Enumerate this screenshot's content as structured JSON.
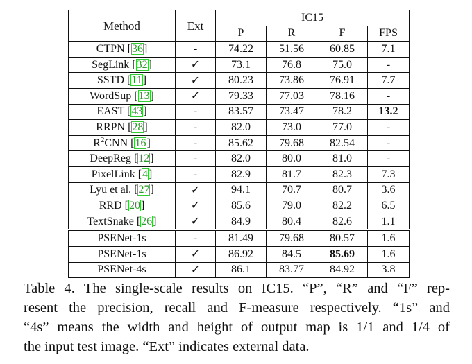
{
  "table": {
    "headers": {
      "method": "Method",
      "ext": "Ext",
      "dataset": "IC15",
      "p": "P",
      "r": "R",
      "f": "F",
      "fps": "FPS"
    },
    "rows": [
      {
        "method": "CTPN",
        "cite": "36",
        "ext": "-",
        "p": "74.22",
        "r": "51.56",
        "f": "60.85",
        "fps": "7.1"
      },
      {
        "method": "SegLink",
        "cite": "32",
        "ext": "✓",
        "p": "73.1",
        "r": "76.8",
        "f": "75.0",
        "fps": "-"
      },
      {
        "method": "SSTD",
        "cite": "11",
        "ext": "✓",
        "p": "80.23",
        "r": "73.86",
        "f": "76.91",
        "fps": "7.7"
      },
      {
        "method": "WordSup",
        "cite": "13",
        "ext": "✓",
        "p": "79.33",
        "r": "77.03",
        "f": "78.16",
        "fps": "-"
      },
      {
        "method": "EAST",
        "cite": "43",
        "ext": "-",
        "p": "83.57",
        "r": "73.47",
        "f": "78.2",
        "fps": "13.2",
        "fps_bold": true
      },
      {
        "method": "RRPN",
        "cite": "28",
        "ext": "-",
        "p": "82.0",
        "r": "73.0",
        "f": "77.0",
        "fps": "-"
      },
      {
        "method": "R",
        "method_sup": "2",
        "method_rest": "CNN",
        "cite": "16",
        "ext": "-",
        "p": "85.62",
        "r": "79.68",
        "f": "82.54",
        "fps": "-"
      },
      {
        "method": "DeepReg",
        "cite": "12",
        "ext": "-",
        "p": "82.0",
        "r": "80.0",
        "f": "81.0",
        "fps": "-"
      },
      {
        "method": "PixelLink",
        "cite": "4",
        "ext": "-",
        "p": "82.9",
        "r": "81.7",
        "f": "82.3",
        "fps": "7.3"
      },
      {
        "method": "Lyu et al.",
        "cite": "27",
        "ext": "✓",
        "p": "94.1",
        "r": "70.7",
        "f": "80.7",
        "fps": "3.6"
      },
      {
        "method": "RRD",
        "cite": "20",
        "ext": "✓",
        "p": "85.6",
        "r": "79.0",
        "f": "82.2",
        "fps": "6.5"
      },
      {
        "method": "TextSnake",
        "cite": "26",
        "ext": "✓",
        "p": "84.9",
        "r": "80.4",
        "f": "82.6",
        "fps": "1.1"
      }
    ],
    "ours": [
      {
        "method": "PSENet-1s",
        "ext": "-",
        "p": "81.49",
        "r": "79.68",
        "f": "80.57",
        "fps": "1.6"
      },
      {
        "method": "PSENet-1s",
        "ext": "✓",
        "p": "86.92",
        "r": "84.5",
        "f": "85.69",
        "f_bold": true,
        "fps": "1.6"
      },
      {
        "method": "PSENet-4s",
        "ext": "✓",
        "p": "86.1",
        "r": "83.77",
        "f": "84.92",
        "fps": "3.8"
      }
    ]
  },
  "caption": {
    "line1": "Table 4. The single-scale results on IC15.  “P”, “R” and “F” rep-",
    "line2": "resent the precision, recall and F-measure respectively.  “1s” and",
    "line3": "“4s” means the width and height of output map is 1/1 and 1/4 of",
    "line4": "the input test image. “Ext” indicates external data."
  }
}
